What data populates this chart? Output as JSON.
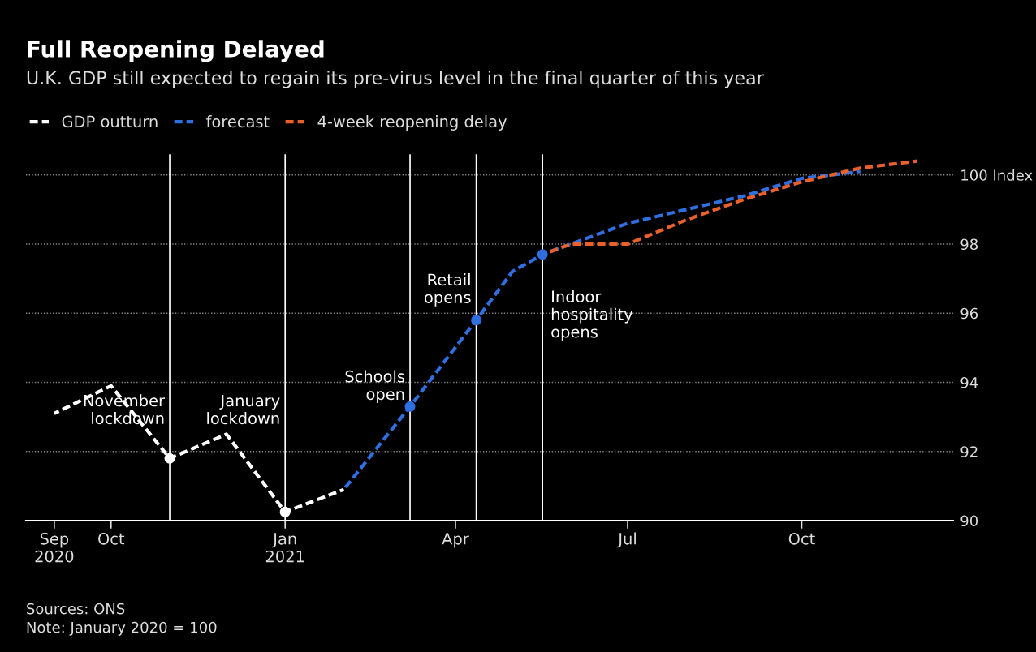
{
  "chart_data": {
    "type": "line",
    "title": "Full Reopening Delayed",
    "subtitle": "U.K. GDP still expected to regain its pre-virus level in the final quarter of this year",
    "series": [
      {
        "name": "GDP outturn",
        "color": "#ffffff",
        "x": [
          "2020-09-01",
          "2020-10-01",
          "2020-11-01",
          "2020-12-01",
          "2021-01-01",
          "2021-02-01"
        ],
        "values": [
          93.1,
          93.9,
          91.8,
          92.5,
          90.25,
          90.9
        ]
      },
      {
        "name": "forecast",
        "color": "#2f6fe0",
        "x": [
          "2021-02-01",
          "2021-03-08",
          "2021-04-12",
          "2021-05-01",
          "2021-05-17",
          "2021-06-01",
          "2021-07-01",
          "2021-08-01",
          "2021-09-01",
          "2021-10-01",
          "2021-11-01"
        ],
        "values": [
          90.9,
          93.3,
          95.8,
          97.2,
          97.7,
          98.0,
          98.6,
          99.0,
          99.4,
          99.9,
          100.1
        ]
      },
      {
        "name": "4-week reopening delay",
        "color": "#e8602c",
        "x": [
          "2021-05-17",
          "2021-06-01",
          "2021-07-01",
          "2021-08-01",
          "2021-09-01",
          "2021-10-01",
          "2021-11-01",
          "2021-12-01"
        ],
        "values": [
          97.7,
          98.0,
          98.0,
          98.7,
          99.3,
          99.8,
          100.2,
          100.4
        ]
      },
      {
        "type": "scatter",
        "marker": "circle",
        "x": [
          "2020-11-01",
          "2021-01-01",
          "2021-03-08",
          "2021-04-12",
          "2021-05-17"
        ],
        "values": [
          91.8,
          90.25,
          93.3,
          95.8,
          97.7
        ],
        "colors": [
          "#ffffff",
          "#ffffff",
          "#2f6fe0",
          "#2f6fe0",
          "#2f6fe0"
        ]
      }
    ],
    "line_style": "dashed",
    "xlim": [
      "2020-08-17",
      "2021-12-20"
    ],
    "xticks": [
      {
        "value": "2020-09-01",
        "label": "Sep\n2020"
      },
      {
        "value": "2020-10-01",
        "label": "Oct"
      },
      {
        "value": "2021-01-01",
        "label": "Jan\n2021"
      },
      {
        "value": "2021-04-01",
        "label": "Apr"
      },
      {
        "value": "2021-07-01",
        "label": "Jul"
      },
      {
        "value": "2021-10-01",
        "label": "Oct"
      }
    ],
    "ylim": [
      90,
      100.6
    ],
    "yticks": [
      90,
      92,
      94,
      96,
      98,
      {
        "value": 100,
        "label": "100 Index"
      }
    ],
    "grid": "y",
    "legend": "top left",
    "ref_lines": [
      {
        "axis": "x",
        "value": "2020-11-01",
        "color": "#ffffff"
      },
      {
        "axis": "x",
        "value": "2021-01-01",
        "color": "#ffffff"
      },
      {
        "axis": "x",
        "value": "2021-03-08",
        "color": "#ffffff"
      },
      {
        "axis": "x",
        "value": "2021-04-12",
        "color": "#ffffff"
      },
      {
        "axis": "x",
        "value": "2021-05-17",
        "color": "#ffffff"
      }
    ],
    "annotations": [
      {
        "text": "November\nlockdown",
        "x": "2020-11-01",
        "y": 92.7
      },
      {
        "text": "January\nlockdown",
        "x": "2021-01-01",
        "y": 92.7
      },
      {
        "text": "Schools\nopen",
        "x": "2021-03-08",
        "y": 93.4
      },
      {
        "text": "Retail\nopens",
        "x": "2021-04-12",
        "y": 96.2
      },
      {
        "text": "Indoor\nhospitality\nopens",
        "x": "2021-05-17",
        "y": 95.2
      },
      "Sources: ONS\nNote: January 2020 = 100"
    ]
  }
}
